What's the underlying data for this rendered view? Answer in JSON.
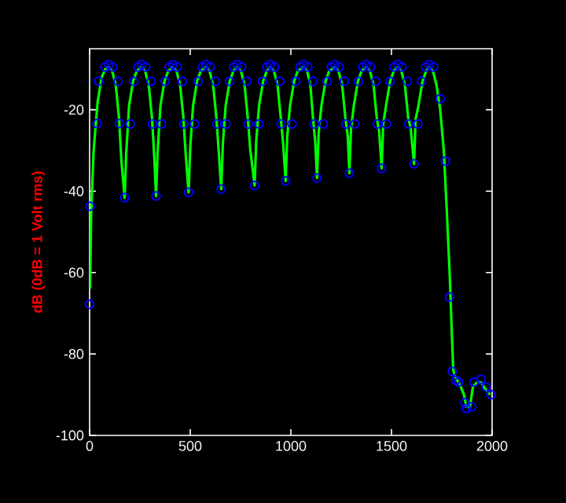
{
  "chart_data": {
    "type": "line",
    "ylabel": "dB (0dB = 1 Volt rms)",
    "xlim": [
      0,
      2000
    ],
    "ylim": [
      -100,
      -5
    ],
    "xticks": [
      0,
      500,
      1000,
      1500,
      2000
    ],
    "yticks": [
      -100,
      -80,
      -60,
      -40,
      -20
    ],
    "series": [
      {
        "type": "scatter",
        "marker": "circle",
        "color": "#0000ff",
        "x": [
          0,
          2,
          37,
          44,
          76,
          96,
          115,
          141,
          148,
          174,
          201,
          219,
          240,
          258,
          279,
          305,
          312,
          330,
          357,
          375,
          396,
          414,
          435,
          461,
          468,
          492,
          521,
          539,
          560,
          578,
          599,
          625,
          632,
          654,
          677,
          695,
          716,
          734,
          755,
          781,
          788,
          820,
          841,
          859,
          880,
          898,
          919,
          945,
          952,
          974,
          1006,
          1024,
          1045,
          1063,
          1084,
          1110,
          1117,
          1130,
          1162,
          1180,
          1201,
          1219,
          1240,
          1266,
          1273,
          1291,
          1318,
          1336,
          1357,
          1375,
          1396,
          1422,
          1429,
          1451,
          1474,
          1492,
          1513,
          1531,
          1552,
          1578,
          1585,
          1612,
          1631,
          1649,
          1670,
          1688,
          1709,
          1742,
          1768,
          1789,
          1802,
          1820,
          1833,
          1865,
          1872,
          1898,
          1911,
          1945,
          1971,
          1995
        ],
        "values": [
          -67.8,
          -43.7,
          -23.4,
          -13,
          -9.5,
          -8.9,
          -9.5,
          -13,
          -23.4,
          -41.6,
          -23.5,
          -13,
          -9.5,
          -8.9,
          -9.5,
          -13,
          -23.5,
          -41.2,
          -23.5,
          -13,
          -9.5,
          -8.9,
          -9.5,
          -13,
          -23.5,
          -40.3,
          -23.5,
          -13,
          -9.5,
          -8.9,
          -9.5,
          -13,
          -23.5,
          -39.5,
          -23.5,
          -13,
          -9.5,
          -8.9,
          -9.5,
          -13,
          -23.5,
          -38.6,
          -23.5,
          -13,
          -9.5,
          -8.9,
          -9.5,
          -13,
          -23.5,
          -37.5,
          -23.5,
          -13,
          -9.5,
          -8.9,
          -9.5,
          -13,
          -23.5,
          -36.8,
          -23.5,
          -13,
          -9.5,
          -8.9,
          -9.5,
          -13,
          -23.5,
          -35.6,
          -23.5,
          -13,
          -9.5,
          -8.9,
          -9.5,
          -13,
          -23.5,
          -34.4,
          -23.5,
          -13,
          -9.5,
          -8.9,
          -9.5,
          -13,
          -23.5,
          -33.3,
          -23.5,
          -13,
          -9.5,
          -8.9,
          -9.5,
          -17.3,
          -32.6,
          -66,
          -84.3,
          -86.5,
          -86.9,
          -92,
          -93.4,
          -93,
          -86.9,
          -86.2,
          -88.1,
          -90
        ]
      },
      {
        "color": "#00ff00",
        "x": [
          2,
          8,
          20,
          40,
          60,
          78,
          94,
          112,
          130,
          146,
          158,
          174,
          182,
          196,
          216,
          234,
          258,
          276,
          294,
          310,
          322,
          330,
          338,
          352,
          372,
          390,
          414,
          432,
          450,
          466,
          478,
          492,
          500,
          514,
          534,
          552,
          578,
          596,
          614,
          630,
          642,
          654,
          662,
          676,
          696,
          714,
          734,
          752,
          770,
          786,
          798,
          820,
          828,
          842,
          862,
          880,
          898,
          916,
          934,
          950,
          962,
          974,
          982,
          996,
          1016,
          1034,
          1063,
          1081,
          1097,
          1110,
          1121,
          1130,
          1138,
          1152,
          1172,
          1190,
          1219,
          1237,
          1255,
          1271,
          1283,
          1291,
          1299,
          1313,
          1333,
          1351,
          1375,
          1393,
          1411,
          1427,
          1439,
          1451,
          1459,
          1473,
          1493,
          1511,
          1531,
          1549,
          1567,
          1583,
          1595,
          1612,
          1620,
          1634,
          1654,
          1672,
          1688,
          1706,
          1724,
          1742,
          1760,
          1775,
          1789,
          1800,
          1807,
          1820,
          1840,
          1860,
          1872,
          1890,
          1905,
          1925,
          1945,
          1965,
          1990
        ],
        "values": [
          -64,
          -45,
          -30,
          -18,
          -12,
          -10,
          -9.5,
          -10.5,
          -14,
          -22,
          -32.6,
          -41.6,
          -30.6,
          -19,
          -13,
          -10.5,
          -9.5,
          -10.5,
          -14,
          -22,
          -32.2,
          -41.2,
          -30.2,
          -19,
          -13,
          -10.5,
          -9.5,
          -10.5,
          -14,
          -22,
          -31.3,
          -40.3,
          -29.3,
          -19,
          -13,
          -10.5,
          -9.5,
          -10.5,
          -14,
          -22,
          -30.5,
          -39.5,
          -28.5,
          -19,
          -13,
          -10.5,
          -9.5,
          -10.5,
          -14,
          -22,
          -29.6,
          -38.6,
          -27.6,
          -19,
          -13,
          -10.5,
          -9.5,
          -10.5,
          -14,
          -22,
          -28.5,
          -37.5,
          -26.5,
          -19,
          -13,
          -10.5,
          -9.5,
          -10.5,
          -14,
          -22,
          -27.8,
          -36.8,
          -25.8,
          -19,
          -13,
          -10.5,
          -9.5,
          -10.5,
          -14,
          -22,
          -26.6,
          -35.6,
          -24.6,
          -19,
          -13,
          -10.5,
          -9.5,
          -10.5,
          -14,
          -22,
          -25.4,
          -34.4,
          -23.4,
          -19,
          -13,
          -10.5,
          -9.5,
          -10.5,
          -14,
          -22,
          -24.3,
          -33.3,
          -22.3,
          -19,
          -13,
          -10.5,
          -9.5,
          -10.5,
          -14,
          -20,
          -30,
          -45,
          -60,
          -75,
          -84,
          -86,
          -87.5,
          -90,
          -93,
          -93,
          -88,
          -87,
          -87,
          -88.5,
          -90
        ]
      }
    ]
  }
}
